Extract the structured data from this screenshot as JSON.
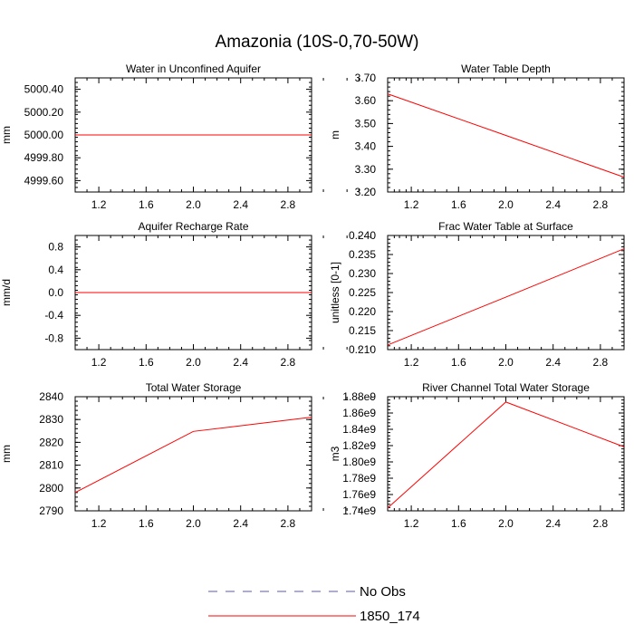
{
  "title": "Amazonia (10S-0,70-50W)",
  "colors": {
    "model": "#ff0000",
    "obs": "#5b5b9b",
    "axes": "#000000"
  },
  "legend": {
    "entries": [
      {
        "label": "No Obs",
        "style": "dashed",
        "color": "#5b5b9b"
      },
      {
        "label": "1850_174",
        "style": "solid",
        "color": "#ff0000"
      }
    ]
  },
  "chart_data": [
    {
      "type": "line",
      "title": "Water in Unconfined Aquifer",
      "ylabel": "mm",
      "xlim": [
        1,
        3
      ],
      "ylim": [
        4999.5,
        5000.5
      ],
      "xticks": [
        1.2,
        1.6,
        2.0,
        2.4,
        2.8
      ],
      "xtick_labels": [
        "1.2",
        "1.6",
        "2.0",
        "2.4",
        "2.8"
      ],
      "yticks": [
        4999.6,
        4999.8,
        5000.0,
        5000.2,
        5000.4
      ],
      "ytick_labels": [
        "4999.60",
        "4999.80",
        "5000.00",
        "5000.20",
        "5000.40"
      ],
      "series": [
        {
          "name": "1850_174",
          "x": [
            1,
            2,
            3
          ],
          "y": [
            5000.0,
            5000.0,
            5000.0
          ]
        }
      ]
    },
    {
      "type": "line",
      "title": "Water Table Depth",
      "ylabel": "m",
      "xlim": [
        1,
        3
      ],
      "ylim": [
        3.2,
        3.7
      ],
      "xticks": [
        1.2,
        1.6,
        2.0,
        2.4,
        2.8
      ],
      "xtick_labels": [
        "1.2",
        "1.6",
        "2.0",
        "2.4",
        "2.8"
      ],
      "yticks": [
        3.2,
        3.3,
        3.4,
        3.5,
        3.6,
        3.7
      ],
      "ytick_labels": [
        "3.20",
        "3.30",
        "3.40",
        "3.50",
        "3.60",
        "3.70"
      ],
      "series": [
        {
          "name": "1850_174",
          "x": [
            1,
            2,
            3
          ],
          "y": [
            3.63,
            3.448,
            3.265
          ]
        }
      ]
    },
    {
      "type": "line",
      "title": "Aquifer Recharge Rate",
      "ylabel": "mm/d",
      "xlim": [
        1,
        3
      ],
      "ylim": [
        -1,
        1
      ],
      "xticks": [
        1.2,
        1.6,
        2.0,
        2.4,
        2.8
      ],
      "xtick_labels": [
        "1.2",
        "1.6",
        "2.0",
        "2.4",
        "2.8"
      ],
      "yticks": [
        -0.8,
        -0.4,
        0.0,
        0.4,
        0.8
      ],
      "ytick_labels": [
        "-0.8",
        "-0.4",
        "0.0",
        "0.4",
        "0.8"
      ],
      "series": [
        {
          "name": "1850_174",
          "x": [
            1,
            2,
            3
          ],
          "y": [
            0,
            0,
            0
          ]
        }
      ]
    },
    {
      "type": "line",
      "title": "Frac Water Table at Surface",
      "ylabel": "unitless [0-1]",
      "xlim": [
        1,
        3
      ],
      "ylim": [
        0.21,
        0.24
      ],
      "xticks": [
        1.2,
        1.6,
        2.0,
        2.4,
        2.8
      ],
      "xtick_labels": [
        "1.2",
        "1.6",
        "2.0",
        "2.4",
        "2.8"
      ],
      "yticks": [
        0.21,
        0.215,
        0.22,
        0.225,
        0.23,
        0.235,
        0.24
      ],
      "ytick_labels": [
        "0.210",
        "0.215",
        "0.220",
        "0.225",
        "0.230",
        "0.235",
        "0.240"
      ],
      "series": [
        {
          "name": "1850_174",
          "x": [
            1,
            2,
            3
          ],
          "y": [
            0.2112,
            0.2238,
            0.2365
          ]
        }
      ]
    },
    {
      "type": "line",
      "title": "Total Water Storage",
      "ylabel": "mm",
      "xlim": [
        1,
        3
      ],
      "ylim": [
        2790,
        2840
      ],
      "xticks": [
        1.2,
        1.6,
        2.0,
        2.4,
        2.8
      ],
      "xtick_labels": [
        "1.2",
        "1.6",
        "2.0",
        "2.4",
        "2.8"
      ],
      "yticks": [
        2790,
        2800,
        2810,
        2820,
        2830,
        2840
      ],
      "ytick_labels": [
        "2790",
        "2800",
        "2810",
        "2820",
        "2830",
        "2840"
      ],
      "series": [
        {
          "name": "1850_174",
          "x": [
            1,
            2,
            3
          ],
          "y": [
            2798,
            2824.8,
            2831
          ]
        }
      ]
    },
    {
      "type": "line",
      "title": "River Channel Total Water Storage",
      "ylabel": "m3",
      "xlim": [
        1,
        3
      ],
      "ylim": [
        1740000000.0,
        1880000000.0
      ],
      "xticks": [
        1.2,
        1.6,
        2.0,
        2.4,
        2.8
      ],
      "xtick_labels": [
        "1.2",
        "1.6",
        "2.0",
        "2.4",
        "2.8"
      ],
      "yticks": [
        1740000000.0,
        1760000000.0,
        1780000000.0,
        1800000000.0,
        1820000000.0,
        1840000000.0,
        1860000000.0,
        1880000000.0
      ],
      "ytick_labels": [
        "1.74e9",
        "1.76e9",
        "1.78e9",
        "1.80e9",
        "1.82e9",
        "1.84e9",
        "1.86e9",
        "1.88e9"
      ],
      "series": [
        {
          "name": "1850_174",
          "x": [
            1,
            2,
            3
          ],
          "y": [
            1743500000.0,
            1873500000.0,
            1818500000.0
          ]
        }
      ]
    }
  ]
}
